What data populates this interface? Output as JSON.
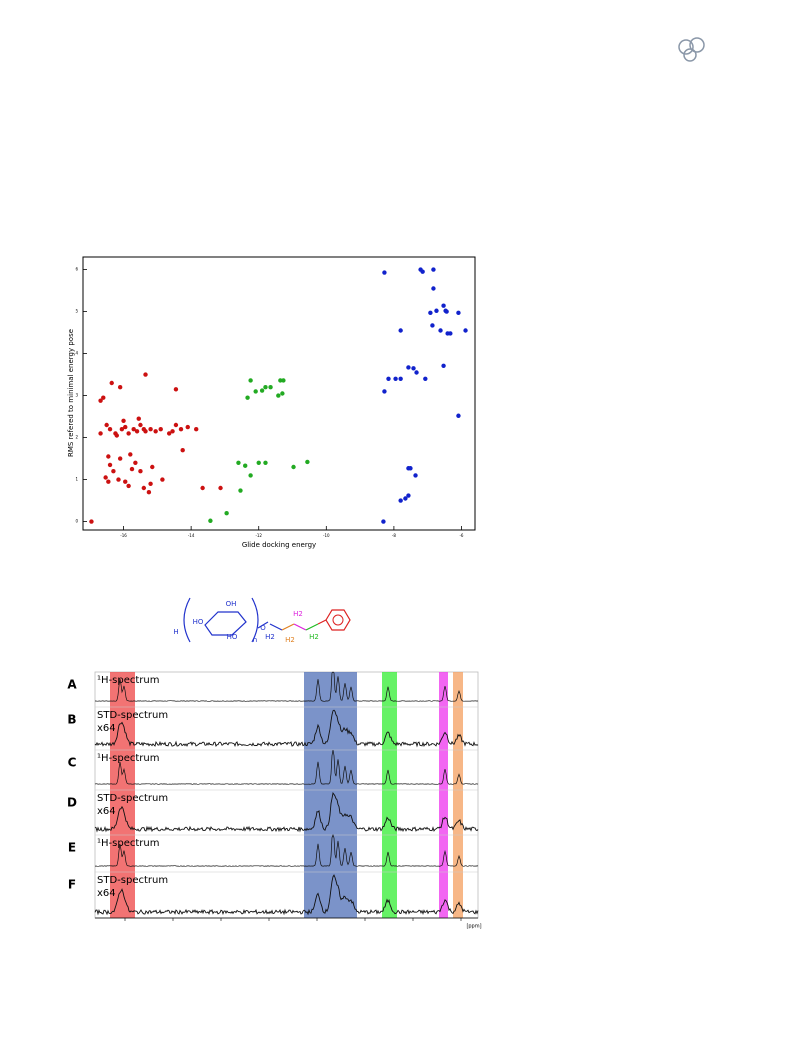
{
  "chart_data": {
    "type": "scatter",
    "x_label": "Glide docking energy",
    "y_label": "RMS refered to minimal energy pose",
    "xlim": [
      -17.2,
      -5.6
    ],
    "ylim": [
      -0.2,
      6.3
    ],
    "xticks": [
      -16,
      -14,
      -12,
      -10,
      -8,
      -6
    ],
    "yticks": [
      0,
      1,
      2,
      3,
      4,
      5,
      6
    ],
    "series": [
      {
        "color": "#cc1111",
        "x": [
          -16.95,
          -16.68,
          -16.6,
          -16.68,
          -16.5,
          -16.35,
          -16.4,
          -16.24,
          -16.45,
          -16.4,
          -16.53,
          -16.45,
          -16.3,
          -16.15,
          -16.1,
          -15.95,
          -15.85,
          -15.8,
          -15.75,
          -15.65,
          -16.2,
          -16.05,
          -15.95,
          -15.85,
          -15.7,
          -15.6,
          -15.5,
          -15.4,
          -15.35,
          -15.55,
          -15.35,
          -15.2,
          -15.05,
          -15.5,
          -15.4,
          -15.25,
          -15.2,
          -15.15,
          -14.9,
          -14.65,
          -14.55,
          -14.45,
          -14.45,
          -14.3,
          -14.25,
          -14.1,
          -13.85,
          -13.66,
          -13.13,
          -14.85,
          -16.1,
          -16.0
        ],
        "values": [
          0,
          2.88,
          2.95,
          2.1,
          2.3,
          3.3,
          2.2,
          2.1,
          1.55,
          1.35,
          1.05,
          0.95,
          1.2,
          1.0,
          1.5,
          0.95,
          0.85,
          1.6,
          1.25,
          1.4,
          2.05,
          2.2,
          2.25,
          2.1,
          2.2,
          2.15,
          2.3,
          2.2,
          2.15,
          2.45,
          3.5,
          2.2,
          2.15,
          1.2,
          0.8,
          0.7,
          0.9,
          1.3,
          2.2,
          2.1,
          2.15,
          2.3,
          3.15,
          2.2,
          1.7,
          2.25,
          2.2,
          0.8,
          0.8,
          1.0,
          3.2,
          2.4
        ]
      },
      {
        "color": "#22aa22",
        "x": [
          -13.43,
          -12.95,
          -12.54,
          -12.6,
          -12.4,
          -12.24,
          -12.0,
          -11.8,
          -12.24,
          -12.33,
          -12.09,
          -11.9,
          -11.8,
          -11.65,
          -11.42,
          -11.36,
          -11.27,
          -10.97,
          -10.56,
          -11.3
        ],
        "values": [
          0.02,
          0.2,
          0.74,
          1.4,
          1.33,
          1.1,
          1.4,
          1.4,
          3.36,
          2.95,
          3.1,
          3.12,
          3.2,
          3.2,
          3.0,
          3.36,
          3.36,
          1.3,
          1.42,
          3.05
        ]
      },
      {
        "color": "#1122cc",
        "x": [
          -8.31,
          -8.28,
          -8.28,
          -8.16,
          -7.95,
          -7.8,
          -7.8,
          -7.8,
          -7.66,
          -7.57,
          -7.57,
          -7.51,
          -7.36,
          -7.42,
          -7.33,
          -7.21,
          -7.15,
          -7.07,
          -6.83,
          -6.83,
          -6.92,
          -6.86,
          -6.74,
          -6.62,
          -6.53,
          -6.47,
          -6.41,
          -6.33,
          -6.53,
          -6.09,
          -6.09,
          -5.88,
          -6.44,
          -7.57
        ],
        "values": [
          0,
          5.93,
          3.1,
          3.4,
          3.4,
          3.4,
          4.55,
          0.5,
          0.55,
          0.62,
          1.27,
          1.27,
          1.1,
          3.65,
          3.55,
          6.0,
          5.95,
          3.4,
          6.0,
          5.55,
          4.97,
          4.67,
          5.02,
          4.55,
          5.14,
          5.02,
          4.48,
          4.48,
          3.71,
          4.97,
          2.52,
          4.55,
          5.0,
          3.67
        ]
      }
    ]
  },
  "molecule": {
    "labels": [
      "HO",
      "OH",
      "HO",
      "H",
      "n",
      "O",
      "H2",
      "H2",
      "H2",
      "H2"
    ]
  },
  "nmr": {
    "panels": [
      {
        "letter": "A",
        "lines": [
          "¹H-spectrum"
        ]
      },
      {
        "letter": "B",
        "lines": [
          "STD-spectrum",
          "x64"
        ]
      },
      {
        "letter": "C",
        "lines": [
          "¹H-spectrum"
        ]
      },
      {
        "letter": "D",
        "lines": [
          "STD-spectrum",
          "x64"
        ]
      },
      {
        "letter": "E",
        "lines": [
          "¹H-spectrum"
        ]
      },
      {
        "letter": "F",
        "lines": [
          "STD-spectrum",
          "x64"
        ]
      }
    ],
    "axis_unit": "[ppm]"
  }
}
